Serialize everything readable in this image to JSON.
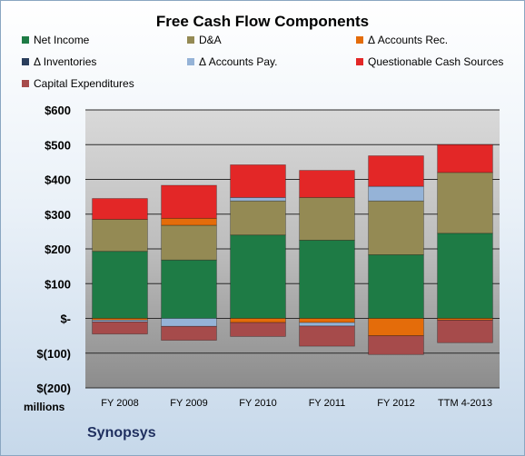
{
  "chart_data": {
    "type": "bar",
    "stacked": true,
    "title": "Free Cash Flow Components",
    "units_label": "millions",
    "company": "Synopsys",
    "categories": [
      "FY 2008",
      "FY 2009",
      "FY 2010",
      "FY 2011",
      "FY 2012",
      "TTM 4-2013"
    ],
    "ylim": [
      -200,
      600
    ],
    "yticks": [
      -200,
      -100,
      0,
      100,
      200,
      300,
      400,
      500,
      600
    ],
    "ytick_labels": [
      "$(200)",
      "$(100)",
      "$-",
      "$100",
      "$200",
      "$300",
      "$400",
      "$500",
      "$600"
    ],
    "grid": true,
    "legend_position": "top",
    "series": [
      {
        "name": "Net Income",
        "color": "#1e7b45",
        "values": [
          193,
          168,
          240,
          225,
          183,
          245
        ]
      },
      {
        "name": "D&A",
        "color": "#948a54",
        "values": [
          92,
          100,
          98,
          123,
          155,
          175
        ]
      },
      {
        "name": "Δ Accounts Rec.",
        "color": "#e46c0a",
        "values": [
          -5,
          20,
          -12,
          -12,
          -50,
          -5
        ]
      },
      {
        "name": "Δ Inventories",
        "color": "#2a3e5c",
        "values": [
          0,
          0,
          0,
          0,
          0,
          0
        ]
      },
      {
        "name": "Δ Accounts Pay.",
        "color": "#95b3d7",
        "values": [
          -5,
          -23,
          10,
          -10,
          42,
          0
        ]
      },
      {
        "name": "Questionable Cash Sources",
        "color": "#e32727",
        "values": [
          60,
          95,
          94,
          78,
          88,
          80
        ]
      },
      {
        "name": "Capital Expenditures",
        "color": "#a64b4b",
        "values": [
          -35,
          -40,
          -40,
          -58,
          -54,
          -65
        ]
      }
    ]
  }
}
